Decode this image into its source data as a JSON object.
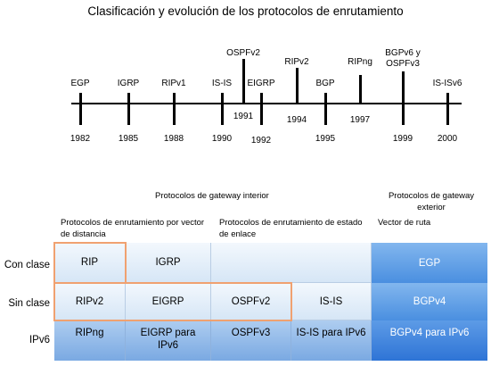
{
  "title": "Clasificación y evolución de los protocolos de enrutamiento",
  "timeline": {
    "protocols": [
      {
        "name": "EGP",
        "year": "1982",
        "pos": "above"
      },
      {
        "name": "IGRP",
        "year": "1985",
        "pos": "above"
      },
      {
        "name": "RIPv1",
        "year": "1988",
        "pos": "above"
      },
      {
        "name": "IS-IS",
        "year": "1990",
        "pos": "above"
      },
      {
        "name": "OSPFv2",
        "year": "1991",
        "pos": "above-high"
      },
      {
        "name": "EIGRP",
        "year": "1992",
        "pos": "above"
      },
      {
        "name": "RIPv2",
        "year": "1994",
        "pos": "above-mid"
      },
      {
        "name": "BGP",
        "year": "1995",
        "pos": "above"
      },
      {
        "name": "RIPng",
        "year": "1997",
        "pos": "above-mid"
      },
      {
        "name": "BGPv6 y OSPFv3",
        "year": "1999",
        "pos": "above-high"
      },
      {
        "name": "IS-ISv6",
        "year": "2000",
        "pos": "above"
      }
    ]
  },
  "table": {
    "interior_header": "Protocolos de gateway interior",
    "exterior_header": "Protocolos de gateway exterior",
    "distance_vector_header": "Protocolos de enrutamiento por vector de distancia",
    "link_state_header": "Protocolos de enrutamiento de estado de enlace",
    "path_vector_header": "Vector de ruta",
    "rows": [
      {
        "label": "Con clase",
        "cells": [
          "RIP",
          "IGRP",
          "",
          "",
          "EGP"
        ]
      },
      {
        "label": "Sin clase",
        "cells": [
          "RIPv2",
          "EIGRP",
          "OSPFv2",
          "IS-IS",
          "BGPv4"
        ]
      },
      {
        "label": "IPv6",
        "cells": [
          "RIPng",
          "EIGRP para IPv6",
          "OSPFv3",
          "IS-IS para IPv6",
          "BGPv4 para IPv6"
        ]
      }
    ]
  },
  "colors": {
    "highlight_border": "#f0a170",
    "exterior_fill": "#4a8fe0"
  }
}
